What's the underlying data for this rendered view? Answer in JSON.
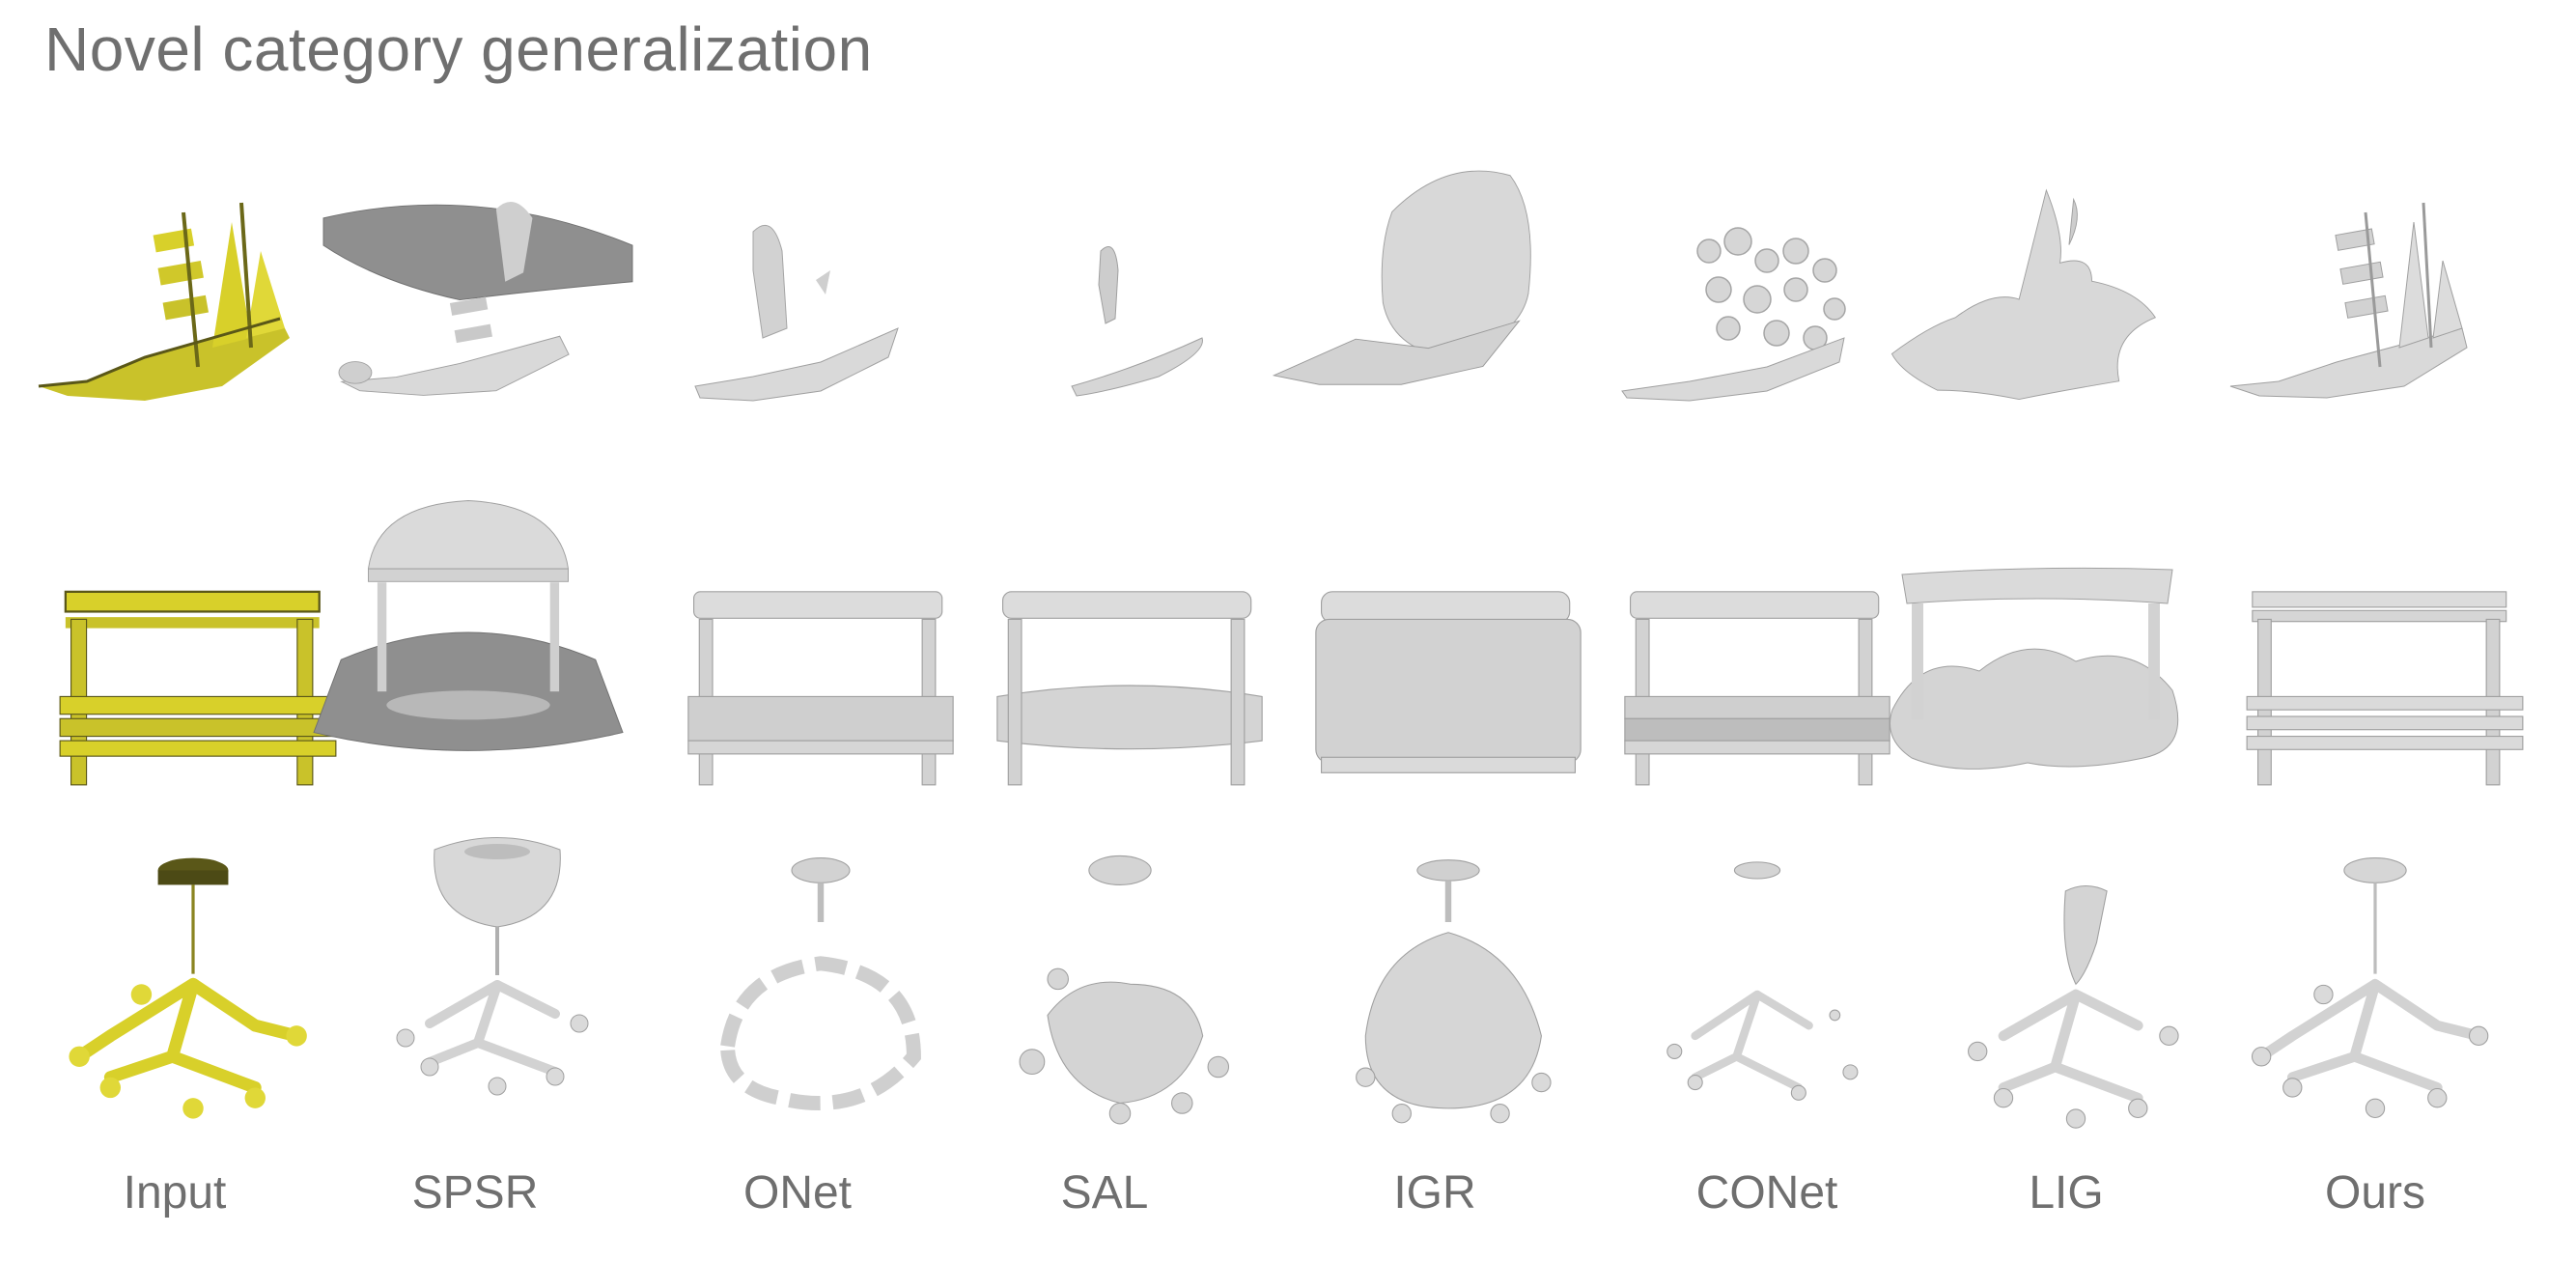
{
  "title": "Novel category generalization",
  "methods": [
    "Input",
    "SPSR",
    "ONet",
    "SAL",
    "IGR",
    "CONet",
    "LIG",
    "Ours"
  ],
  "rows": [
    "ship",
    "bench",
    "chandelier"
  ],
  "colors": {
    "input": "#d8d02a",
    "input_dark": "#5a5718",
    "mesh": "#d7d7d7",
    "mesh_edge": "#9a9a9a",
    "mesh_dark": "#8a8a8a"
  }
}
